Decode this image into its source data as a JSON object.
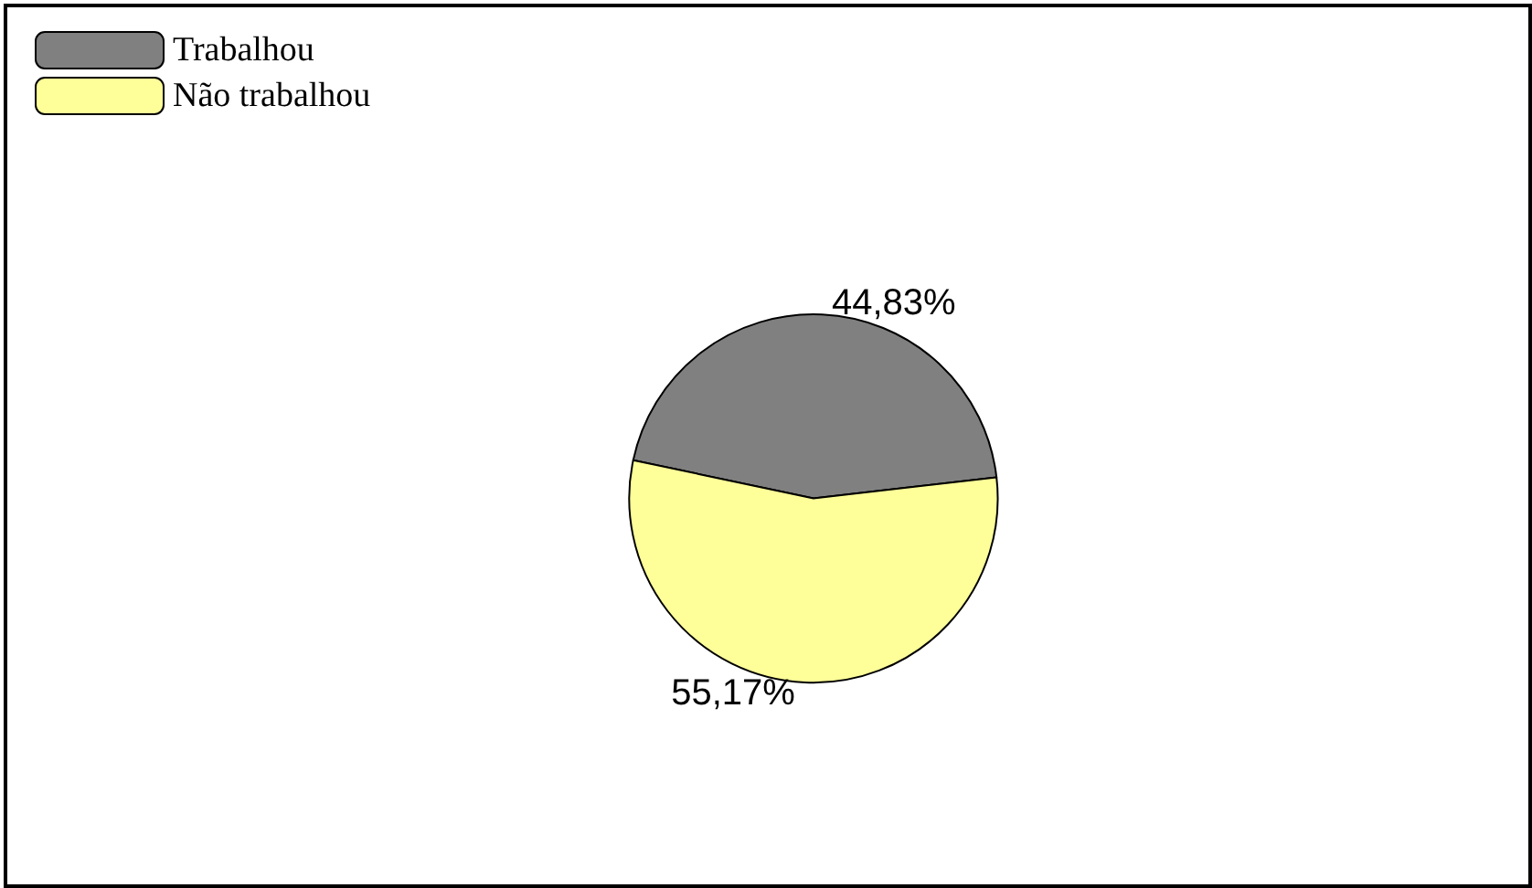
{
  "chart_data": {
    "type": "pie",
    "categories": [
      "Trabalhou",
      "Não trabalhou"
    ],
    "values": [
      44.83,
      55.17
    ],
    "colors": [
      "#808080",
      "#ffff99"
    ],
    "value_labels": [
      "44,83%",
      "55,17%"
    ],
    "legend": "top left"
  }
}
